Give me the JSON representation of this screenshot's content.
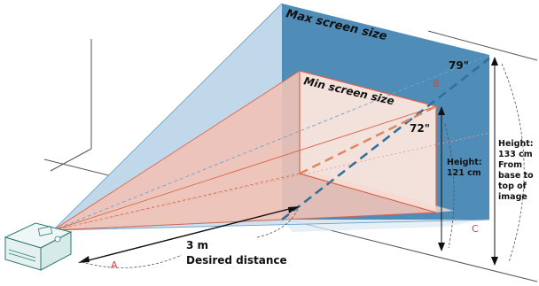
{
  "labels": {
    "max_screen_size": "Max screen size",
    "min_screen_size": "Min screen size",
    "max_diagonal": "79\"",
    "min_diagonal": "72\"",
    "distance_value": "3 m",
    "distance_caption": "Desired distance",
    "min_height_line1": "Height:",
    "min_height_line2": "121 cm",
    "max_height_line1": "Height:",
    "max_height_line2": "133 cm",
    "max_height_line3": "From",
    "max_height_line4": "base to",
    "max_height_line5": "top of",
    "max_height_line6": "image",
    "letter_a": "A",
    "letter_b": "B",
    "letter_c": "C"
  },
  "colors": {
    "max_screen_fill": "#4f8db8",
    "max_beam_fill": "#bcd6ea",
    "min_screen_fill": "#f3e1dc",
    "min_beam_fill": "#eeb9ab",
    "min_edge": "#d9654a",
    "max_diagonal_line": "#2f6f9a",
    "min_diagonal_line": "#e0875f",
    "letter_color": "#d0463a",
    "text": "#111111"
  }
}
